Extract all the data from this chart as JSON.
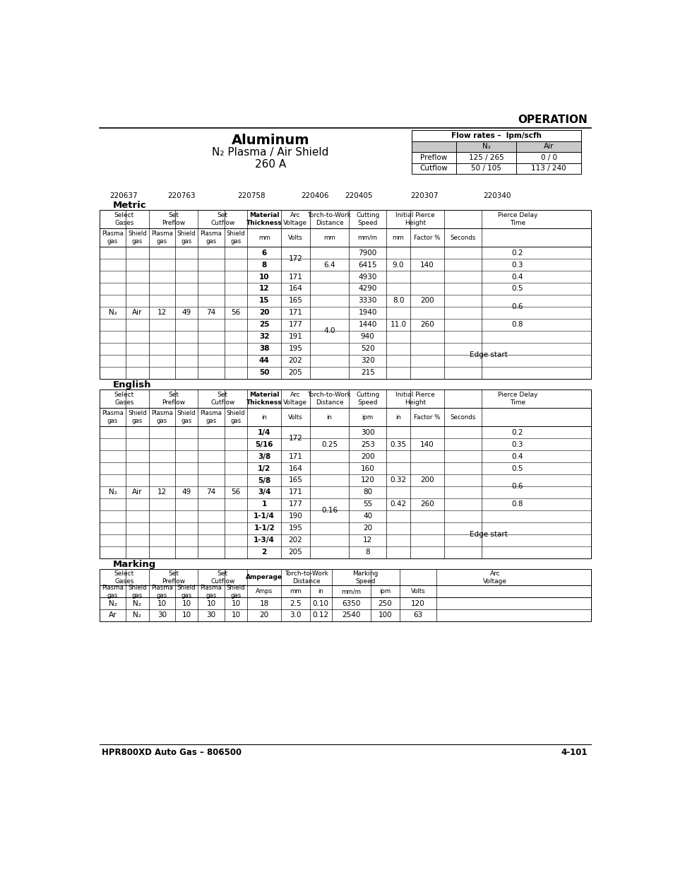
{
  "title": "Aluminum",
  "subtitle1": "N₂ Plasma / Air Shield",
  "subtitle2": "260 A",
  "header_label": "OPERATION",
  "flow_rates_title": "Flow rates –  lpm/scfh",
  "part_numbers": [
    "220637",
    "220763",
    "220758",
    "220406",
    "220405",
    "220307",
    "220340"
  ],
  "metric_section": "Metric",
  "english_section": "English",
  "marking_section": "Marking",
  "footer_left": "HPR800XD Auto Gas – 806500",
  "footer_right": "4-101",
  "background_color": "#ffffff",
  "metric_thickness": [
    "6",
    "8",
    "10",
    "12",
    "15",
    "20",
    "25",
    "32",
    "38",
    "44",
    "50"
  ],
  "metric_arc_volt_merges": [
    [
      0,
      1,
      "172"
    ],
    [
      2,
      2,
      "171"
    ],
    [
      3,
      3,
      "164"
    ],
    [
      4,
      4,
      "165"
    ],
    [
      5,
      5,
      "171"
    ],
    [
      6,
      6,
      "177"
    ],
    [
      7,
      7,
      "191"
    ],
    [
      8,
      8,
      "195"
    ],
    [
      9,
      9,
      "202"
    ],
    [
      10,
      10,
      "205"
    ]
  ],
  "metric_ttw_merges": [
    [
      0,
      2,
      "6.4"
    ],
    [
      3,
      10,
      "4.0"
    ]
  ],
  "metric_cutting": [
    "7900",
    "6415",
    "4930",
    "4290",
    "3330",
    "1940",
    "1440",
    "940",
    "520",
    "320",
    "215"
  ],
  "metric_iph_mm": [
    [
      0,
      2,
      "9.0"
    ],
    [
      3,
      5,
      "8.0"
    ],
    [
      6,
      6,
      "11.0"
    ]
  ],
  "metric_iph_pct": [
    [
      0,
      2,
      "140"
    ],
    [
      3,
      5,
      "200"
    ],
    [
      6,
      6,
      "260"
    ]
  ],
  "metric_pd": [
    [
      0,
      0,
      "0.2"
    ],
    [
      1,
      1,
      "0.3"
    ],
    [
      2,
      2,
      "0.4"
    ],
    [
      3,
      3,
      "0.5"
    ],
    [
      4,
      5,
      "0.6"
    ],
    [
      6,
      6,
      "0.8"
    ]
  ],
  "english_thickness": [
    "1/4",
    "5/16",
    "3/8",
    "1/2",
    "5/8",
    "3/4",
    "1",
    "1-1/4",
    "1-1/2",
    "1-3/4",
    "2"
  ],
  "english_arc_volt_merges": [
    [
      0,
      1,
      "172"
    ],
    [
      2,
      2,
      "171"
    ],
    [
      3,
      3,
      "164"
    ],
    [
      4,
      4,
      "165"
    ],
    [
      5,
      5,
      "171"
    ],
    [
      6,
      6,
      "177"
    ],
    [
      7,
      7,
      "190"
    ],
    [
      8,
      8,
      "195"
    ],
    [
      9,
      9,
      "202"
    ],
    [
      10,
      10,
      "205"
    ]
  ],
  "english_ttw_merges": [
    [
      0,
      2,
      "0.25"
    ],
    [
      3,
      10,
      "0.16"
    ]
  ],
  "english_cutting": [
    "300",
    "253",
    "200",
    "160",
    "120",
    "80",
    "55",
    "40",
    "20",
    "12",
    "8"
  ],
  "english_iph_mm": [
    [
      0,
      2,
      "0.35"
    ],
    [
      3,
      5,
      "0.32"
    ],
    [
      6,
      6,
      "0.42"
    ]
  ],
  "english_iph_pct": [
    [
      0,
      2,
      "140"
    ],
    [
      3,
      5,
      "200"
    ],
    [
      6,
      6,
      "260"
    ]
  ],
  "english_pd": [
    [
      0,
      0,
      "0.2"
    ],
    [
      1,
      1,
      "0.3"
    ],
    [
      2,
      2,
      "0.4"
    ],
    [
      3,
      3,
      "0.5"
    ],
    [
      4,
      5,
      "0.6"
    ],
    [
      6,
      6,
      "0.8"
    ]
  ],
  "marking_data": [
    [
      "N₂",
      "N₂",
      "10",
      "10",
      "10",
      "10",
      "18",
      "2.5",
      "0.10",
      "6350",
      "250",
      "120"
    ],
    [
      "Ar",
      "N₂",
      "30",
      "10",
      "30",
      "10",
      "20",
      "3.0",
      "0.12",
      "2540",
      "100",
      "63"
    ]
  ]
}
